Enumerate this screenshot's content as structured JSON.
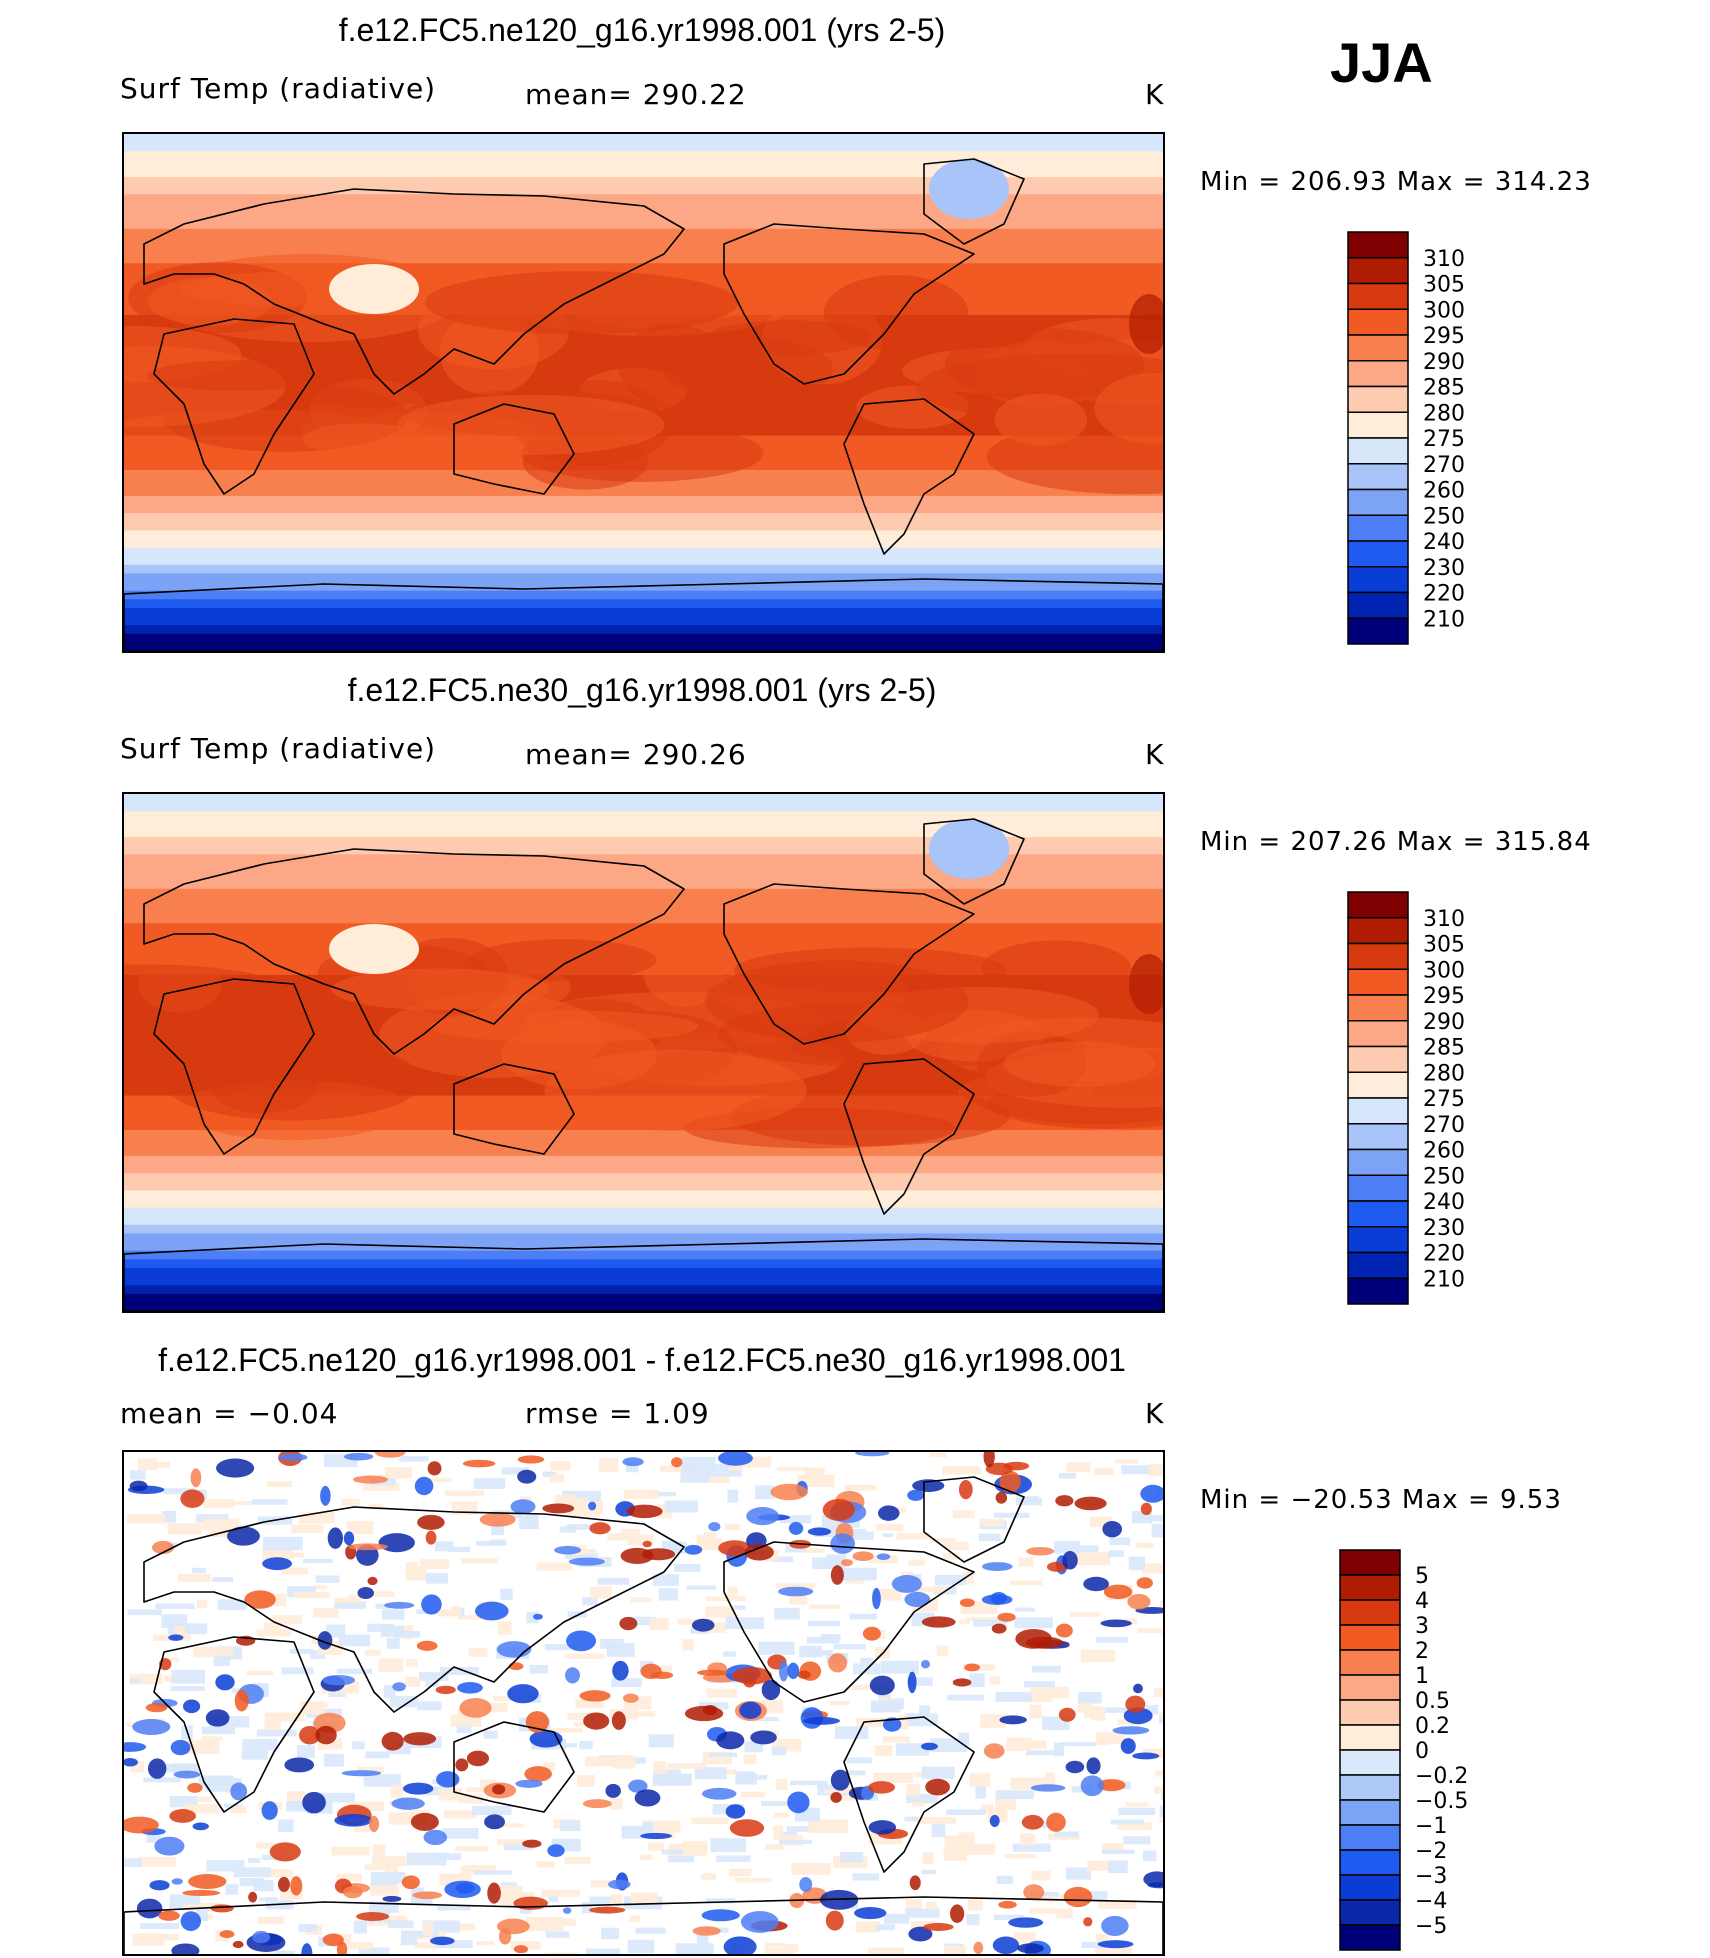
{
  "season": "JJA",
  "colors": {
    "temp_scale": [
      "#00007a",
      "#0022b0",
      "#0a3dd6",
      "#1f5af0",
      "#4d7ef5",
      "#7da3f7",
      "#a9c4f8",
      "#d6e6fb",
      "#ffecd9",
      "#fdcbb0",
      "#fca785",
      "#f8804f",
      "#f15a22",
      "#d83a10",
      "#b01c02",
      "#7f0000"
    ],
    "diff_scale": [
      "#00007a",
      "#0a28a8",
      "#0a3dd6",
      "#1f5af0",
      "#4d7ef5",
      "#7da3f7",
      "#aec8f8",
      "#d9e8fb",
      "#ffecd9",
      "#fdcbb0",
      "#fca785",
      "#f8804f",
      "#f15a22",
      "#d83a10",
      "#b01c02",
      "#7f0000"
    ]
  },
  "panels": [
    {
      "title": "f.e12.FC5.ne120_g16.yr1998.001 (yrs 2-5)",
      "variable": "Surf Temp (radiative)",
      "stat_left": "",
      "stat": "mean=  290.22",
      "units": "K",
      "minmax": "Min  =  206.93  Max  =  314.23",
      "field": "temp",
      "colorbar_labels": [
        "310",
        "305",
        "300",
        "295",
        "290",
        "285",
        "280",
        "275",
        "270",
        "260",
        "250",
        "240",
        "230",
        "220",
        "210"
      ]
    },
    {
      "title": "f.e12.FC5.ne30_g16.yr1998.001 (yrs 2-5)",
      "variable": "Surf Temp (radiative)",
      "stat_left": "",
      "stat": "mean=  290.26",
      "units": "K",
      "minmax": "Min  =  207.26  Max  =  315.84",
      "field": "temp",
      "colorbar_labels": [
        "310",
        "305",
        "300",
        "295",
        "290",
        "285",
        "280",
        "275",
        "270",
        "260",
        "250",
        "240",
        "230",
        "220",
        "210"
      ]
    },
    {
      "title": "f.e12.FC5.ne120_g16.yr1998.001 - f.e12.FC5.ne30_g16.yr1998.001",
      "variable": "",
      "stat_left": "mean  =   −0.04",
      "stat": "rmse  =      1.09",
      "units": "K",
      "minmax": "Min  =  −20.53  Max  =      9.53",
      "field": "diff",
      "colorbar_labels": [
        "5",
        "4",
        "3",
        "2",
        "1",
        "0.5",
        "0.2",
        "0",
        "−0.2",
        "−0.5",
        "−1",
        "−2",
        "−3",
        "−4",
        "−5"
      ]
    }
  ]
}
